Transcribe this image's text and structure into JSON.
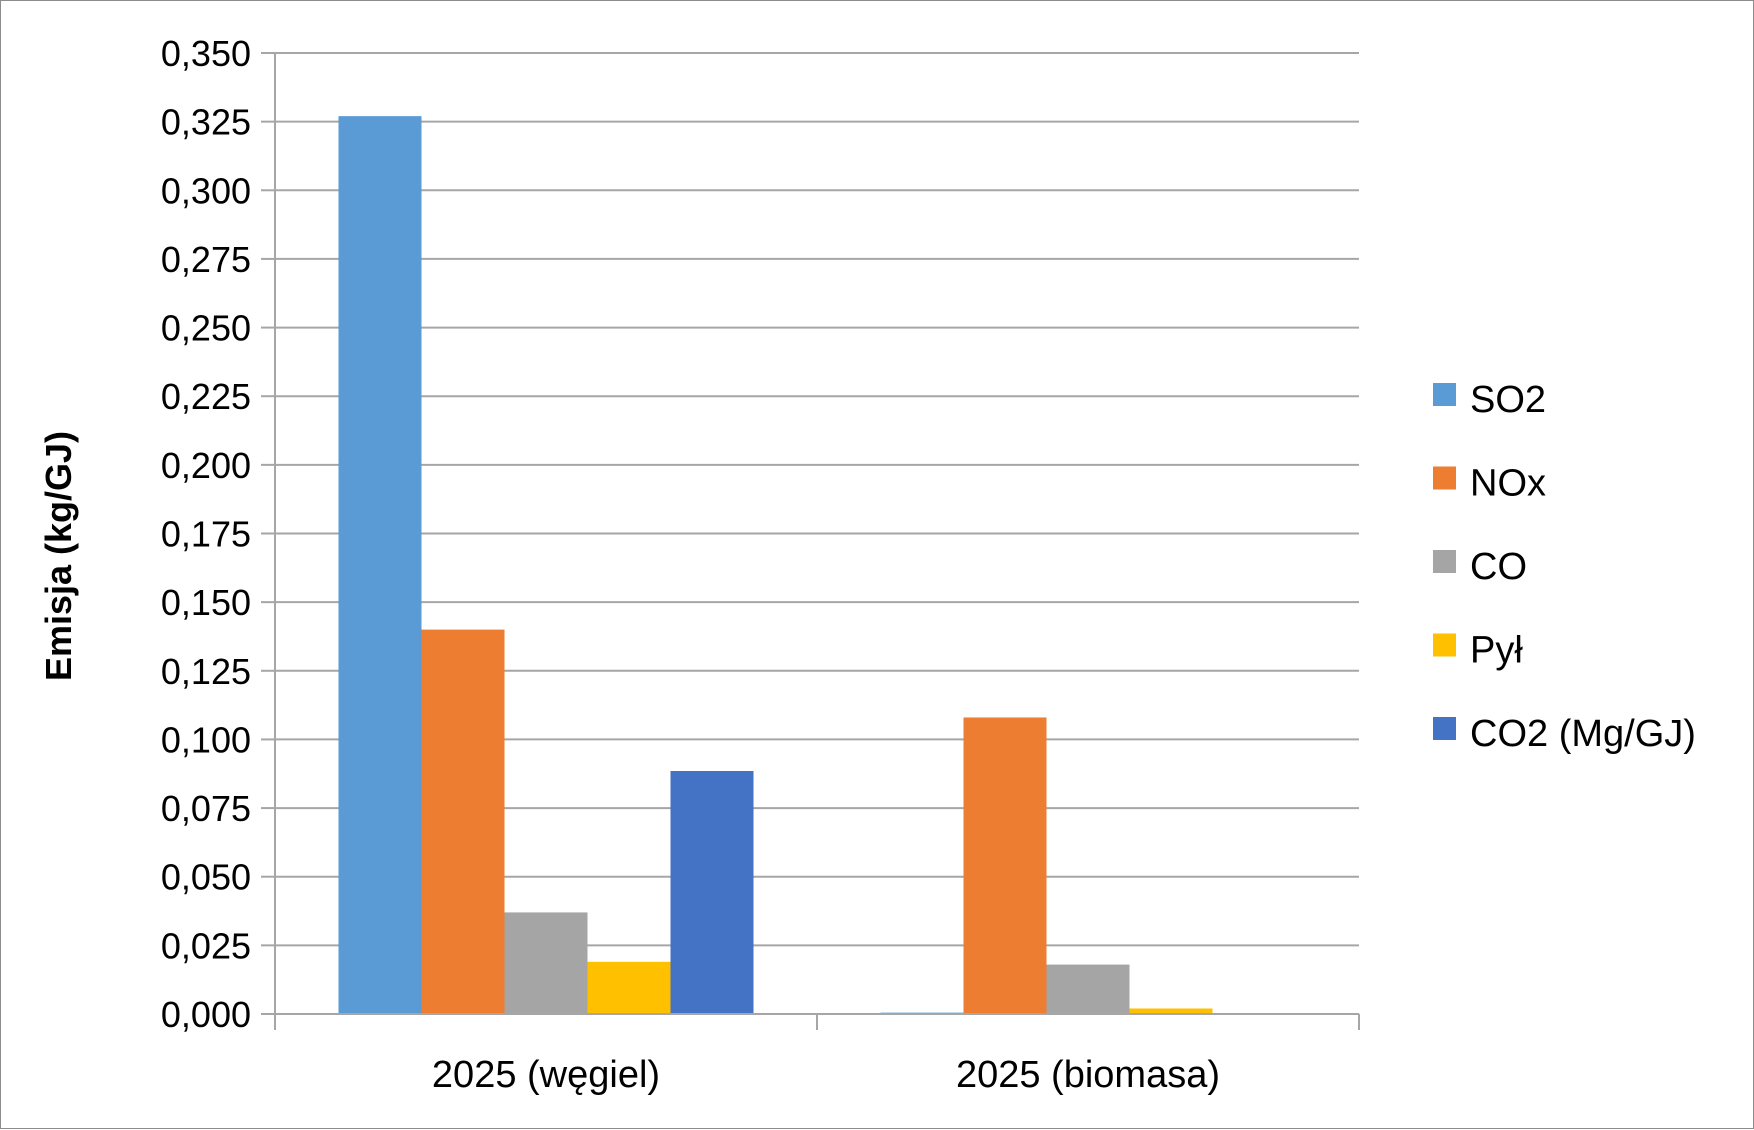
{
  "chart_data": {
    "type": "bar",
    "title": "",
    "xlabel": "",
    "ylabel": "Emisja (kg/GJ)",
    "ylim": [
      0,
      0.35
    ],
    "ytick_step": 0.025,
    "decimal_separator": ",",
    "grid": true,
    "legend_position": "right",
    "categories": [
      "2025 (węgiel)",
      "2025 (biomasa)"
    ],
    "series": [
      {
        "name": "SO2",
        "color": "#5B9BD5",
        "values": [
          0.327,
          0.0005
        ]
      },
      {
        "name": "NOx",
        "color": "#ED7D31",
        "values": [
          0.14,
          0.108
        ]
      },
      {
        "name": "CO",
        "color": "#A5A5A5",
        "values": [
          0.037,
          0.018
        ]
      },
      {
        "name": "Pył",
        "color": "#FFC000",
        "values": [
          0.019,
          0.002
        ]
      },
      {
        "name": "CO2 (Mg/GJ)",
        "color": "#4472C4",
        "values": [
          0.0885,
          0
        ]
      }
    ]
  }
}
